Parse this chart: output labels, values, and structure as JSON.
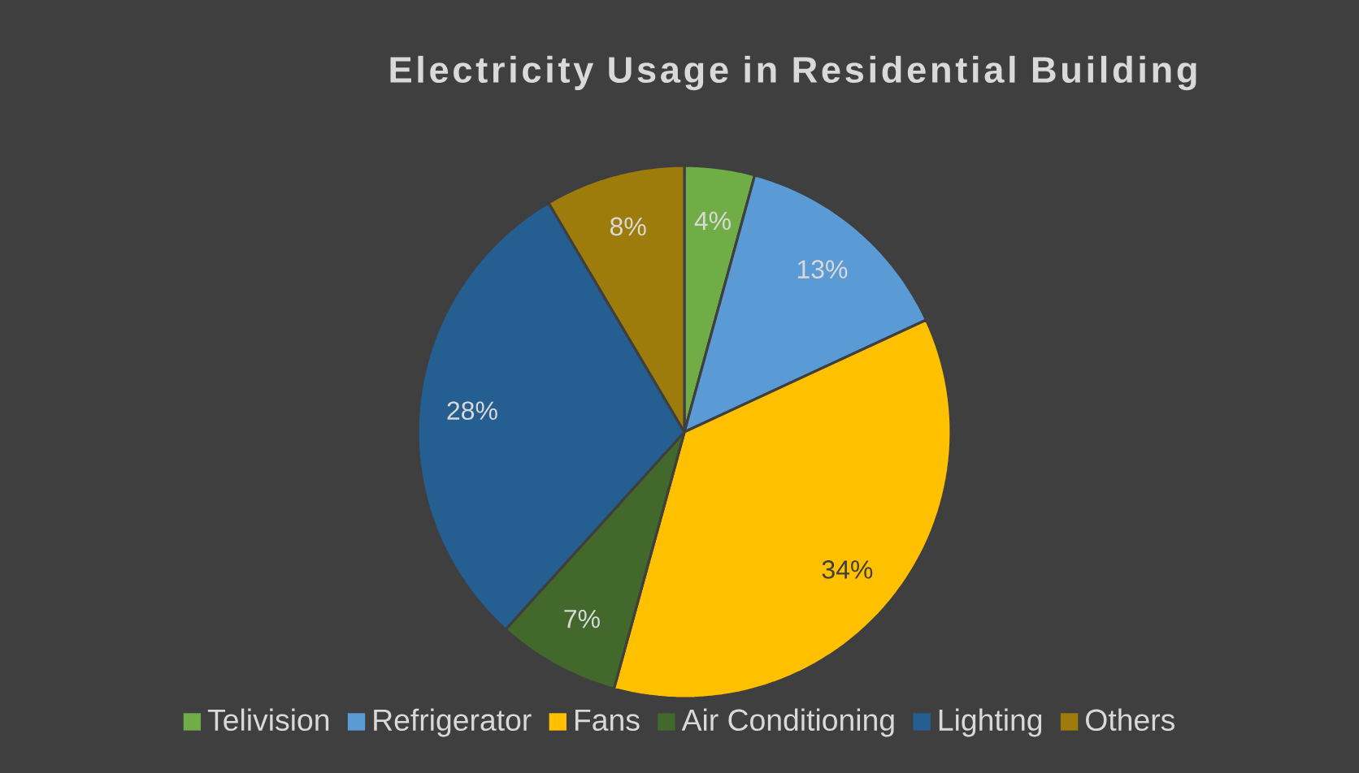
{
  "chart_data": {
    "type": "pie",
    "title": "Electricity Usage in Residential Building",
    "categories": [
      "Telivision",
      "Refrigerator",
      "Fans",
      "Air Conditioning",
      "Lighting",
      "Others"
    ],
    "values": [
      4,
      13,
      34,
      7,
      28,
      8
    ],
    "colors": [
      "#70ad47",
      "#5b9bd5",
      "#ffc000",
      "#43682b",
      "#255e91",
      "#9e7c0c"
    ],
    "value_labels": [
      "4%",
      "13%",
      "34%",
      "7%",
      "28%",
      "8%"
    ],
    "legend": "bottom"
  }
}
